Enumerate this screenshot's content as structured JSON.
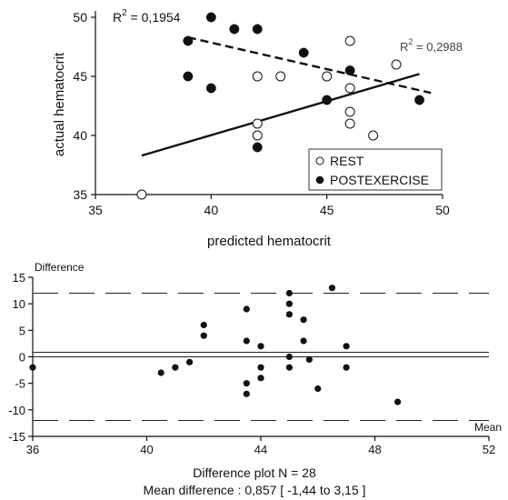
{
  "chart_data": [
    {
      "type": "scatter",
      "xlabel": "predicted hematocrit",
      "ylabel": "actual hematocrit",
      "xlim": [
        35,
        50
      ],
      "ylim": [
        35,
        50
      ],
      "xticks": [
        "35",
        "40",
        "45",
        "50"
      ],
      "yticks": [
        "35",
        "40",
        "45",
        "50"
      ],
      "legend": {
        "placement": "bottom-right",
        "entries": [
          "REST",
          "POSTEXERCISE"
        ]
      },
      "series": [
        {
          "name": "REST",
          "marker": "open-circle",
          "points": [
            [
              37,
              35
            ],
            [
              42,
              45
            ],
            [
              43,
              45
            ],
            [
              45,
              45
            ],
            [
              42,
              41
            ],
            [
              42,
              40
            ],
            [
              46,
              48
            ],
            [
              46,
              44
            ],
            [
              46,
              42
            ],
            [
              46,
              41
            ],
            [
              47,
              40
            ],
            [
              48,
              46
            ]
          ]
        },
        {
          "name": "POSTEXERCISE",
          "marker": "filled-circle",
          "points": [
            [
              39,
              48
            ],
            [
              39,
              45
            ],
            [
              40,
              50
            ],
            [
              40,
              44
            ],
            [
              41,
              49
            ],
            [
              42,
              49
            ],
            [
              42,
              39
            ],
            [
              44,
              47
            ],
            [
              45,
              43
            ],
            [
              46,
              45.5
            ],
            [
              49,
              43
            ]
          ]
        }
      ],
      "fit_lines": [
        {
          "series": "REST",
          "style": "solid",
          "x": [
            37,
            49
          ],
          "y": [
            38.3,
            45.2
          ]
        },
        {
          "series": "POSTEXERCISE",
          "style": "dashed",
          "x": [
            39,
            49.5
          ],
          "y": [
            48.3,
            43.6
          ]
        }
      ],
      "annotations": [
        {
          "text": "R",
          "sup": "2",
          "value": " = 0,1954",
          "position": "top-left"
        },
        {
          "text": "R",
          "sup": "2",
          "value": " = 0,2988",
          "position": "top-right"
        }
      ]
    },
    {
      "type": "scatter",
      "title": "Difference plot N = 28",
      "subtitle": "Mean difference : 0,857 [ -1,44 to 3,15 ]",
      "ylabel": "Difference",
      "xlabel": "Mean",
      "xlim": [
        36,
        52
      ],
      "ylim": [
        -15,
        15
      ],
      "xticks": [
        "36",
        "40",
        "44",
        "48",
        "52"
      ],
      "yticks": [
        "15",
        "10",
        "5",
        "0",
        "-5",
        "-10",
        "-15"
      ],
      "reference_lines": [
        {
          "y": 12,
          "style": "long-dash"
        },
        {
          "y": 0.857,
          "style": "solid"
        },
        {
          "y": 0,
          "style": "solid"
        },
        {
          "y": -12,
          "style": "long-dash"
        }
      ],
      "points": [
        [
          36,
          -2
        ],
        [
          40.5,
          -3
        ],
        [
          41,
          -2
        ],
        [
          41.5,
          -1
        ],
        [
          42,
          6
        ],
        [
          42,
          4
        ],
        [
          43.5,
          9
        ],
        [
          43.5,
          3
        ],
        [
          43.5,
          -5
        ],
        [
          43.5,
          -7
        ],
        [
          44,
          2
        ],
        [
          44,
          -2
        ],
        [
          44,
          -4
        ],
        [
          45,
          12
        ],
        [
          45,
          10
        ],
        [
          45,
          8
        ],
        [
          45,
          0
        ],
        [
          45,
          -2
        ],
        [
          45.5,
          7
        ],
        [
          45.5,
          3
        ],
        [
          45.7,
          -0.5
        ],
        [
          46,
          -6
        ],
        [
          46.5,
          13
        ],
        [
          47,
          2
        ],
        [
          47,
          -2
        ],
        [
          48.8,
          -8.5
        ]
      ]
    }
  ]
}
